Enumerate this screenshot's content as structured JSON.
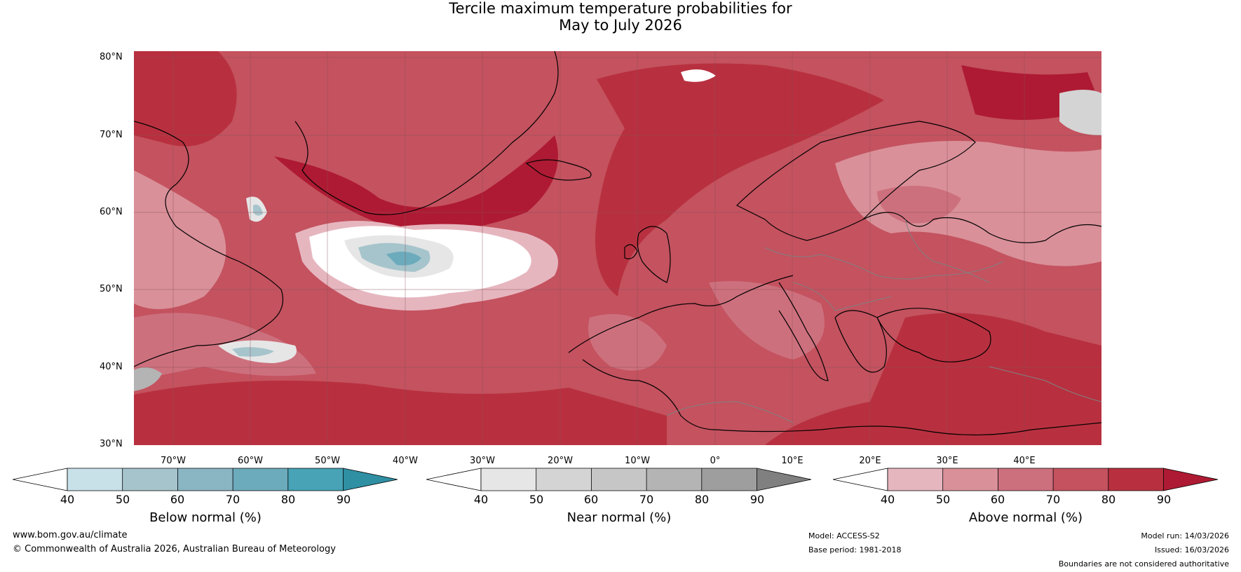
{
  "title": {
    "line1": "Tercile maximum temperature probabilities for",
    "line2": "May to July 2026"
  },
  "axes": {
    "lat_labels": [
      "80°N",
      "70°N",
      "60°N",
      "50°N",
      "40°N",
      "30°N"
    ],
    "lon_labels": [
      "70°W",
      "60°W",
      "50°W",
      "40°W",
      "30°W",
      "20°W",
      "10°W",
      "0°",
      "10°E",
      "20°E",
      "30°E",
      "40°E"
    ]
  },
  "colorbars": {
    "below": {
      "label": "Below normal (%)",
      "ticks": [
        "40",
        "50",
        "60",
        "70",
        "80",
        "90"
      ],
      "colors": [
        "#ffffff",
        "#c8e1e9",
        "#a6c4cc",
        "#8ab5c3",
        "#6cabbc",
        "#47a3b5",
        "#2f8fa3"
      ]
    },
    "near": {
      "label": "Near normal (%)",
      "ticks": [
        "40",
        "50",
        "60",
        "70",
        "80",
        "90"
      ],
      "colors": [
        "#ffffff",
        "#e6e6e6",
        "#d4d4d4",
        "#c6c6c6",
        "#b4b4b4",
        "#9e9e9e",
        "#808080"
      ]
    },
    "above": {
      "label": "Above normal (%)",
      "ticks": [
        "40",
        "50",
        "60",
        "70",
        "80",
        "90"
      ],
      "colors": [
        "#ffffff",
        "#e6b6bf",
        "#d99099",
        "#cd707d",
        "#c4525f",
        "#b8303f",
        "#ae1a33"
      ]
    }
  },
  "footer": {
    "website": "www.bom.gov.au/climate",
    "copyright": "© Commonwealth of Australia 2026, Australian Bureau of Meteorology",
    "model": "Model: ACCESS-S2",
    "base_period": "Base period: 1981-2018",
    "model_run": "Model run: 14/03/2026",
    "issued": "Issued: 16/03/2026",
    "disclaimer": "Boundaries are not considered authoritative"
  }
}
